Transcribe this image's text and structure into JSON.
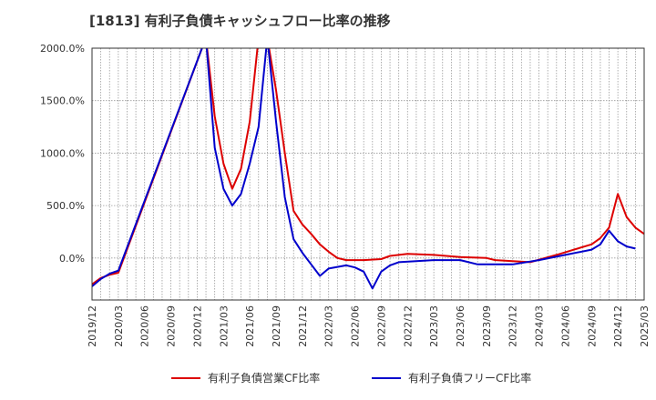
{
  "chart_data": {
    "type": "line",
    "title": "[1813]  有利子負債キャッシュフロー比率の推移",
    "ylim": [
      -400,
      2000
    ],
    "y_ticks": [
      0,
      500,
      1000,
      1500,
      2000
    ],
    "y_tick_labels": [
      "0.0%",
      "500.0%",
      "1000.0%",
      "1500.0%",
      "2000.0%"
    ],
    "x_range": [
      "2019/12",
      "2025/03"
    ],
    "x_tick_labels": [
      "2019/12",
      "2020/03",
      "2020/06",
      "2020/09",
      "2020/12",
      "2021/03",
      "2021/06",
      "2021/09",
      "2021/12",
      "2022/03",
      "2022/06",
      "2022/09",
      "2022/12",
      "2023/03",
      "2023/06",
      "2023/09",
      "2023/12",
      "2024/03",
      "2024/06",
      "2024/09",
      "2024/12",
      "2025/03"
    ],
    "grid": true,
    "legend_position": "bottom",
    "series": [
      {
        "name": "有利子負債営業CF比率",
        "color": "#dd0000",
        "points": [
          [
            "2019/12",
            -250
          ],
          [
            "2020/01",
            -190
          ],
          [
            "2020/02",
            -160
          ],
          [
            "2020/03",
            -140
          ],
          [
            "2021/01",
            2100
          ],
          [
            "2021/02",
            1350
          ],
          [
            "2021/03",
            900
          ],
          [
            "2021/04",
            660
          ],
          [
            "2021/05",
            850
          ],
          [
            "2021/06",
            1300
          ],
          [
            "2021/07",
            2100
          ],
          [
            "2021/08",
            2100
          ],
          [
            "2021/09",
            1600
          ],
          [
            "2021/10",
            1000
          ],
          [
            "2021/11",
            450
          ],
          [
            "2021/12",
            320
          ],
          [
            "2022/01",
            230
          ],
          [
            "2022/02",
            130
          ],
          [
            "2022/03",
            60
          ],
          [
            "2022/04",
            0
          ],
          [
            "2022/05",
            -20
          ],
          [
            "2022/06",
            -20
          ],
          [
            "2022/07",
            -20
          ],
          [
            "2022/09",
            -10
          ],
          [
            "2022/10",
            20
          ],
          [
            "2022/12",
            40
          ],
          [
            "2023/03",
            30
          ],
          [
            "2023/06",
            10
          ],
          [
            "2023/09",
            0
          ],
          [
            "2023/10",
            -20
          ],
          [
            "2023/12",
            -30
          ],
          [
            "2024/02",
            -40
          ],
          [
            "2024/05",
            30
          ],
          [
            "2024/07",
            80
          ],
          [
            "2024/09",
            130
          ],
          [
            "2024/10",
            190
          ],
          [
            "2024/11",
            290
          ],
          [
            "2024/12",
            610
          ],
          [
            "2025/01",
            390
          ],
          [
            "2025/02",
            290
          ],
          [
            "2025/03",
            230
          ]
        ]
      },
      {
        "name": "有利子負債フリーCF比率",
        "color": "#0000cc",
        "points": [
          [
            "2019/12",
            -270
          ],
          [
            "2020/01",
            -200
          ],
          [
            "2020/02",
            -150
          ],
          [
            "2020/03",
            -120
          ],
          [
            "2021/01",
            2100
          ],
          [
            "2021/02",
            1050
          ],
          [
            "2021/03",
            660
          ],
          [
            "2021/04",
            500
          ],
          [
            "2021/05",
            610
          ],
          [
            "2021/06",
            900
          ],
          [
            "2021/07",
            1250
          ],
          [
            "2021/08",
            2100
          ],
          [
            "2021/09",
            1300
          ],
          [
            "2021/10",
            580
          ],
          [
            "2021/11",
            180
          ],
          [
            "2021/12",
            50
          ],
          [
            "2022/01",
            -60
          ],
          [
            "2022/02",
            -170
          ],
          [
            "2022/03",
            -100
          ],
          [
            "2022/05",
            -70
          ],
          [
            "2022/06",
            -90
          ],
          [
            "2022/07",
            -130
          ],
          [
            "2022/08",
            -290
          ],
          [
            "2022/09",
            -130
          ],
          [
            "2022/10",
            -70
          ],
          [
            "2022/11",
            -40
          ],
          [
            "2023/01",
            -30
          ],
          [
            "2023/03",
            -20
          ],
          [
            "2023/06",
            -20
          ],
          [
            "2023/08",
            -60
          ],
          [
            "2023/10",
            -60
          ],
          [
            "2023/12",
            -60
          ],
          [
            "2024/03",
            -20
          ],
          [
            "2024/06",
            30
          ],
          [
            "2024/09",
            80
          ],
          [
            "2024/10",
            130
          ],
          [
            "2024/11",
            260
          ],
          [
            "2024/12",
            160
          ],
          [
            "2025/01",
            110
          ],
          [
            "2025/02",
            90
          ]
        ]
      }
    ]
  }
}
